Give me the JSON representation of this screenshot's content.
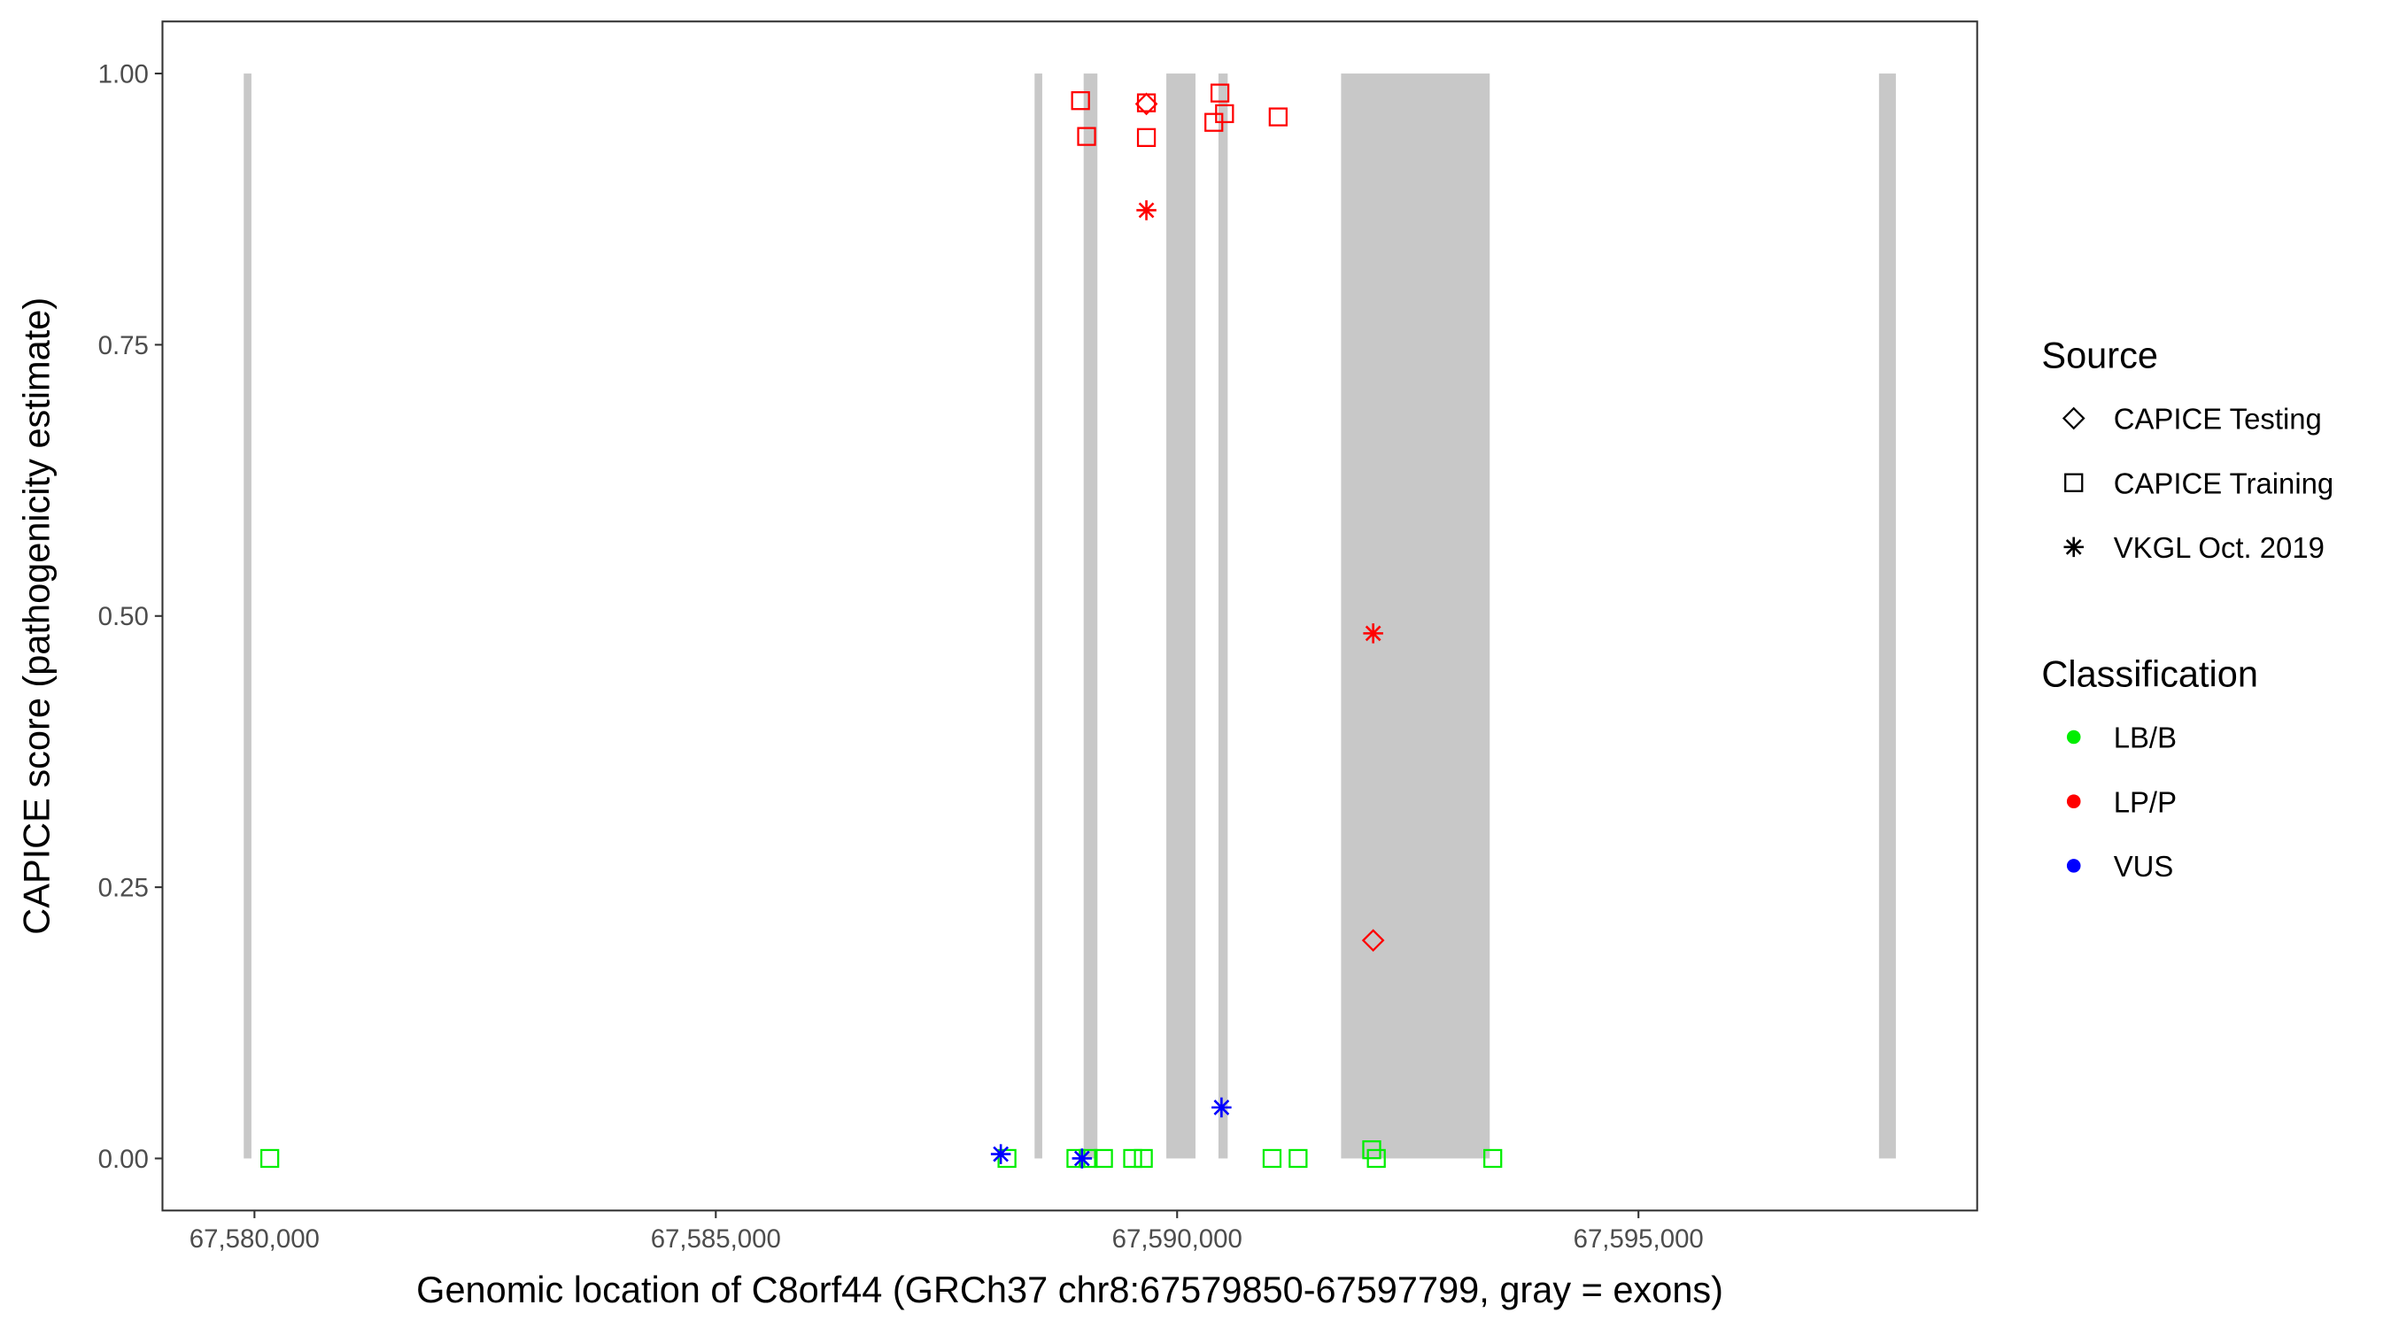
{
  "chart_data": {
    "type": "scatter",
    "x_label": "Genomic location of C8orf44 (GRCh37 chr8:67579850-67597799, gray = exons)",
    "y_label": "CAPICE score (pathogenicity estimate)",
    "xlim": [
      67579003,
      67598671
    ],
    "ylim": [
      -0.048,
      1.048
    ],
    "xticks": [
      {
        "value": 67580000,
        "label": "67,580,000"
      },
      {
        "value": 67585000,
        "label": "67,585,000"
      },
      {
        "value": 67590000,
        "label": "67,590,000"
      },
      {
        "value": 67595000,
        "label": "67,595,000"
      }
    ],
    "yticks": [
      {
        "value": 0,
        "label": "0.00"
      },
      {
        "value": 0.25,
        "label": "0.25"
      },
      {
        "value": 0.5,
        "label": "0.50"
      },
      {
        "value": 0.75,
        "label": "0.75"
      },
      {
        "value": 1,
        "label": "1.00"
      }
    ],
    "exon_color": "#c8c8c8",
    "exons": [
      [
        67579884,
        67579967
      ],
      [
        67588455,
        67588538
      ],
      [
        67588987,
        67589136
      ],
      [
        67589883,
        67590199
      ],
      [
        67590448,
        67590548
      ],
      [
        67591777,
        67593388
      ],
      [
        67597607,
        67597790
      ]
    ],
    "legends": [
      {
        "title": "Source",
        "entries": [
          {
            "label": "CAPICE Testing",
            "shape": "diamond"
          },
          {
            "label": "CAPICE Training",
            "shape": "square"
          },
          {
            "label": "VKGL Oct. 2019",
            "shape": "asterisk"
          }
        ]
      },
      {
        "title": "Classification",
        "entries": [
          {
            "label": "LB/B",
            "color": "#00ee00"
          },
          {
            "label": "LP/P",
            "color": "#ff0000"
          },
          {
            "label": "VUS",
            "color": "#0000ff"
          }
        ]
      }
    ],
    "series": [
      {
        "source": "CAPICE Training",
        "classification": "LB/B",
        "x": [
          67580166,
          67588156,
          67588903,
          67589036,
          67589202,
          67589518,
          67589634,
          67591029,
          67591311,
          67592109,
          67592159,
          67593421
        ],
        "y": [
          0,
          0,
          0,
          0,
          0,
          0,
          0,
          0,
          0,
          0.008,
          0,
          0
        ]
      },
      {
        "source": "CAPICE Training",
        "classification": "LP/P",
        "x": [
          67588953,
          67589019,
          67589667,
          67589667,
          67590464,
          67590514,
          67590398,
          67591095
        ],
        "y": [
          0.975,
          0.942,
          0.941,
          0.973,
          0.982,
          0.963,
          0.955,
          0.96
        ]
      },
      {
        "source": "CAPICE Testing",
        "classification": "LP/P",
        "x": [
          67589667,
          67592125
        ],
        "y": [
          0.972,
          0.201
        ]
      },
      {
        "source": "VKGL Oct. 2019",
        "classification": "LP/P",
        "x": [
          67589667,
          67592125
        ],
        "y": [
          0.874,
          0.484
        ]
      },
      {
        "source": "VKGL Oct. 2019",
        "classification": "VUS",
        "x": [
          67588089,
          67588969,
          67590481
        ],
        "y": [
          0.004,
          0,
          0.047
        ]
      }
    ]
  }
}
